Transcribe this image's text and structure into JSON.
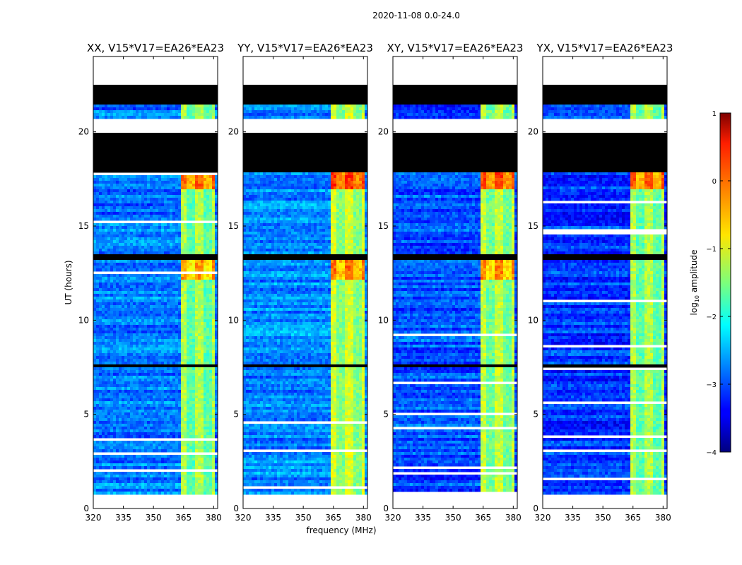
{
  "chart_data": {
    "type": "heatmap",
    "suptitle": "2020-11-08 0.0-24.0",
    "xlabel": "frequency (MHz)",
    "ylabel": "UT (hours)",
    "xlim": [
      320,
      382
    ],
    "ylim": [
      0,
      24
    ],
    "xticks": [
      "320",
      "335",
      "350",
      "365",
      "380"
    ],
    "xtick_values": [
      320,
      335,
      350,
      365,
      380
    ],
    "yticks": [
      "0",
      "5",
      "10",
      "15",
      "20"
    ],
    "ytick_values": [
      0,
      5,
      10,
      15,
      20
    ],
    "colorbar": {
      "label": "log10 amplitude",
      "label_base": "log",
      "label_sub": "10",
      "label_rest": " amplitude",
      "ticks": [
        "1",
        "0",
        "−1",
        "−2",
        "−3",
        "−4"
      ],
      "tick_values": [
        1,
        0,
        -1,
        -2,
        -3,
        -4
      ],
      "range": [
        -4,
        1
      ],
      "colormap": "jet"
    },
    "panels": [
      {
        "title": "XX, V15*V17=EA26*EA23",
        "strong_band_mhz": [
          363,
          380
        ],
        "band_level": -1.6,
        "background_level": -2.8
      },
      {
        "title": "YY, V15*V17=EA26*EA23",
        "strong_band_mhz": [
          363,
          380
        ],
        "band_level": -1.4,
        "background_level": -2.7
      },
      {
        "title": "XY, V15*V17=EA26*EA23",
        "strong_band_mhz": [
          363,
          380
        ],
        "band_level": -1.5,
        "background_level": -3.0
      },
      {
        "title": "YX, V15*V17=EA26*EA23",
        "strong_band_mhz": [
          363,
          380
        ],
        "band_level": -1.6,
        "background_level": -3.1
      }
    ],
    "flagged_hours": [
      [
        17.8,
        20.0
      ],
      [
        21.5,
        22.5
      ],
      [
        13.2,
        13.5
      ],
      [
        7.5,
        7.7
      ]
    ],
    "blank_hours": [
      [
        22.5,
        24.0
      ],
      [
        20.0,
        20.7
      ],
      [
        0.0,
        0.8
      ]
    ]
  }
}
